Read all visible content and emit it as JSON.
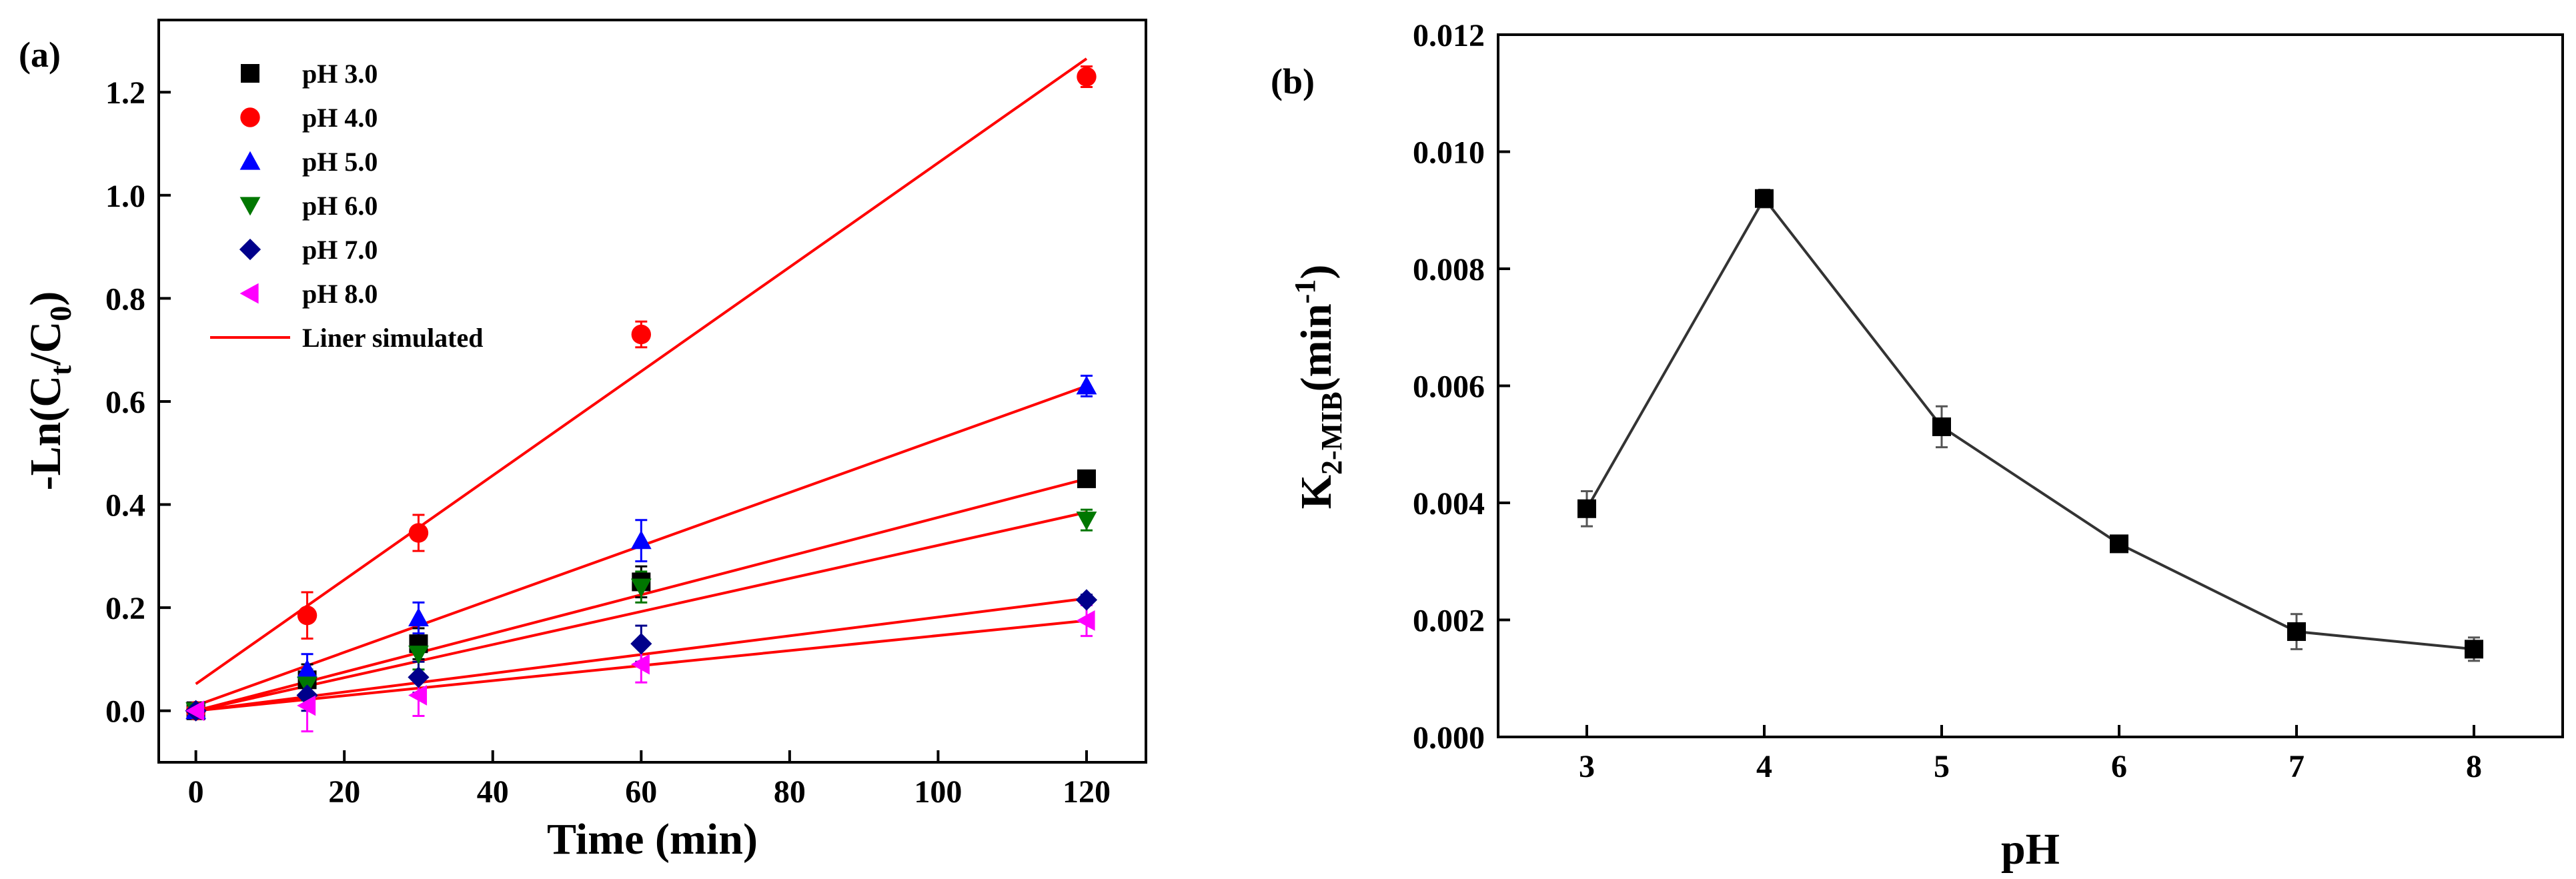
{
  "chart_data": [
    {
      "panel": "(a)",
      "type": "scatter",
      "xlabel": "Time (min)",
      "ylabel": "-Ln(Ct/C0)",
      "ylabel_parts": {
        "prefix": "-Ln(C",
        "sub1": "t",
        "mid": "/C",
        "sub2": "0",
        "suffix": ")"
      },
      "xlim": [
        -5,
        128
      ],
      "ylim": [
        -0.1,
        1.34
      ],
      "xticks": [
        0,
        20,
        40,
        60,
        80,
        100,
        120
      ],
      "yticks": [
        0.0,
        0.2,
        0.4,
        0.6,
        0.8,
        1.0,
        1.2
      ],
      "ytick_labels": [
        "0.0",
        "0.2",
        "0.4",
        "0.6",
        "0.8",
        "1.0",
        "1.2"
      ],
      "x": [
        0,
        15,
        30,
        60,
        120
      ],
      "series": [
        {
          "name": "pH 3.0",
          "marker": "square",
          "color": "#000000",
          "values": [
            0.0,
            0.06,
            0.13,
            0.25,
            0.45
          ],
          "errors": [
            0.01,
            0.03,
            0.03,
            0.03,
            0.01
          ],
          "fit": [
            0.0,
            0.45
          ]
        },
        {
          "name": "pH 4.0",
          "marker": "circle",
          "color": "#ff0000",
          "values": [
            0.0,
            0.185,
            0.345,
            0.73,
            1.23
          ],
          "errors": [
            0.01,
            0.045,
            0.035,
            0.025,
            0.02
          ],
          "fit": [
            0.052,
            1.265
          ]
        },
        {
          "name": "pH 5.0",
          "marker": "triangle-up",
          "color": "#0000ff",
          "values": [
            0.0,
            0.08,
            0.18,
            0.33,
            0.63
          ],
          "errors": [
            0.01,
            0.03,
            0.03,
            0.04,
            0.02
          ],
          "fit": [
            0.01,
            0.63
          ]
        },
        {
          "name": "pH 6.0",
          "marker": "triangle-down",
          "color": "#007700",
          "values": [
            0.0,
            0.05,
            0.11,
            0.24,
            0.37
          ],
          "errors": [
            0.01,
            0.03,
            0.03,
            0.03,
            0.02
          ],
          "fit": [
            0.0,
            0.385
          ]
        },
        {
          "name": "pH 7.0",
          "marker": "diamond",
          "color": "#00008b",
          "values": [
            0.0,
            0.03,
            0.065,
            0.13,
            0.215
          ],
          "errors": [
            0.01,
            0.03,
            0.03,
            0.035,
            0.01
          ],
          "fit": [
            0.0,
            0.218
          ]
        },
        {
          "name": "pH 8.0",
          "marker": "triangle-left",
          "color": "#ff00ff",
          "values": [
            0.0,
            0.01,
            0.03,
            0.09,
            0.175
          ],
          "errors": [
            0.01,
            0.05,
            0.04,
            0.035,
            0.03
          ],
          "fit": [
            0.0,
            0.175
          ]
        }
      ],
      "fit_label": "Liner simulated",
      "fit_color": "#ff0000",
      "legend_position": "top-left"
    },
    {
      "panel": "(b)",
      "type": "line",
      "xlabel": "pH",
      "ylabel": "K2-MIB(min-1)",
      "ylabel_parts": {
        "prefix": "K",
        "sub": "2-MIB",
        "mid": "(min",
        "sup": "-1",
        "suffix": ")"
      },
      "xlim": [
        2.5,
        8.5
      ],
      "ylim": [
        0.0,
        0.012
      ],
      "xticks": [
        3,
        4,
        5,
        6,
        7,
        8
      ],
      "yticks": [
        0.0,
        0.002,
        0.004,
        0.006,
        0.008,
        0.01,
        0.012
      ],
      "ytick_labels": [
        "0.000",
        "0.002",
        "0.004",
        "0.006",
        "0.008",
        "0.010",
        "0.012"
      ],
      "x": [
        3,
        4,
        5,
        6,
        7,
        8
      ],
      "values": [
        0.0039,
        0.0092,
        0.0053,
        0.0033,
        0.0018,
        0.0015
      ],
      "errors": [
        0.0003,
        0.00015,
        0.00035,
        0.0001,
        0.0003,
        0.0002
      ],
      "marker": "square",
      "color": "#000000",
      "line_color": "#333333"
    }
  ]
}
